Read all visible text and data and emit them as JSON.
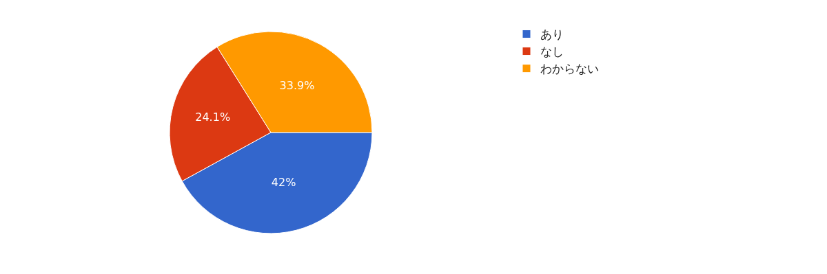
{
  "chart_data": {
    "type": "pie",
    "categories": [
      "あり",
      "なし",
      "わからない"
    ],
    "values": [
      42,
      24.1,
      33.9
    ],
    "colors": [
      "#3366cc",
      "#dc3912",
      "#ff9900"
    ],
    "value_labels": [
      "42%",
      "24.1%",
      "33.9%"
    ],
    "legend": "top right"
  }
}
